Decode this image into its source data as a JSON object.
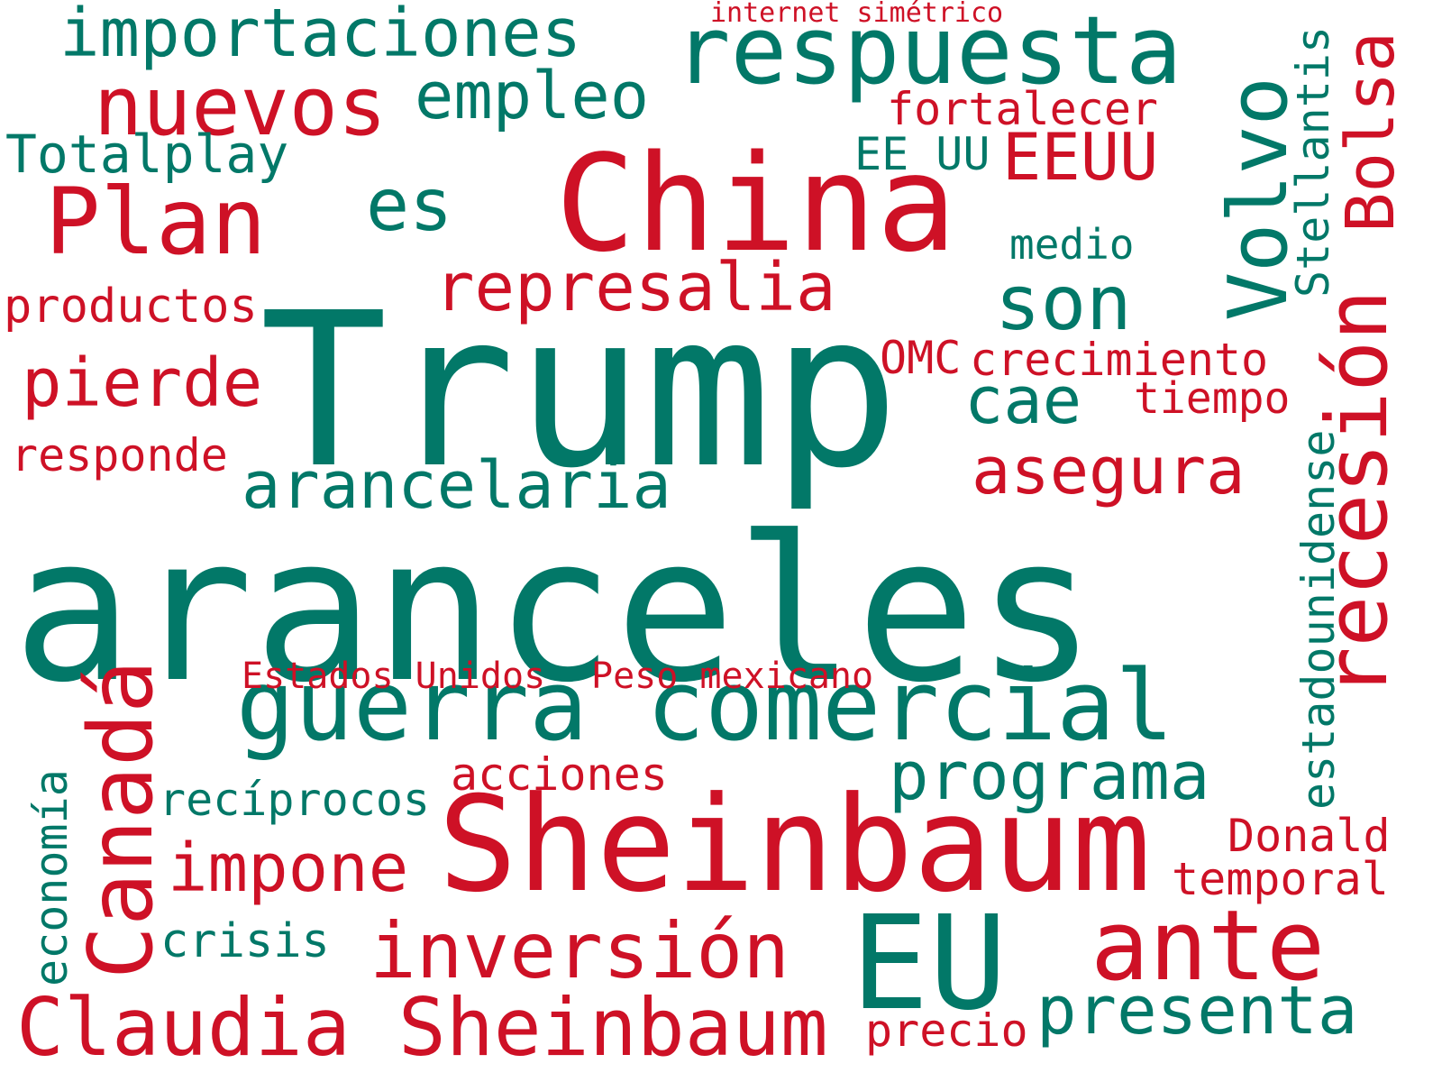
{
  "colors": {
    "green": "#027868",
    "red": "#CE1126",
    "background": "#FFFFFF"
  },
  "words": {
    "aranceles": "aranceles",
    "trump": "Trump",
    "sheinbaum": "Sheinbaum",
    "china": "China",
    "guerra_comercial": "guerra comercial",
    "respuesta": "respuesta",
    "claudia_sheinbaum": "Claudia Sheinbaum",
    "eu": "EU",
    "ante": "ante",
    "inversion": "inversión",
    "plan": "Plan",
    "canada": "Canadá",
    "nuevos": "nuevos",
    "importaciones": "importaciones",
    "empleo": "empleo",
    "represalia": "represalia",
    "arancelaria": "arancelaria",
    "son": "son",
    "es": "es",
    "recesion": "recesión",
    "volvo": "Volvo",
    "bolsa": "Bolsa",
    "eeuu": "EEUU",
    "pierde": "pierde",
    "cae": "cae",
    "asegura": "asegura",
    "programa": "programa",
    "presenta": "presenta",
    "impone": "impone",
    "acciones": "acciones",
    "totalplay": "Totalplay",
    "fortalecer": "fortalecer",
    "ee_uu": "EE UU",
    "medio": "medio",
    "stellantis": "Stellantis",
    "productos": "productos",
    "omc": "OMC",
    "crecimiento": "crecimiento",
    "tiempo": "tiempo",
    "responde": "responde",
    "estados_unidos": "Estados Unidos",
    "peso_mexicano": "Peso mexicano",
    "estadounidense": "estadounidense",
    "reciprocos": "recíprocos",
    "donald": "Donald",
    "temporal": "temporal",
    "economia": "economía",
    "crisis": "crisis",
    "precio": "precio",
    "internet_simetrico": "internet simétrico"
  }
}
